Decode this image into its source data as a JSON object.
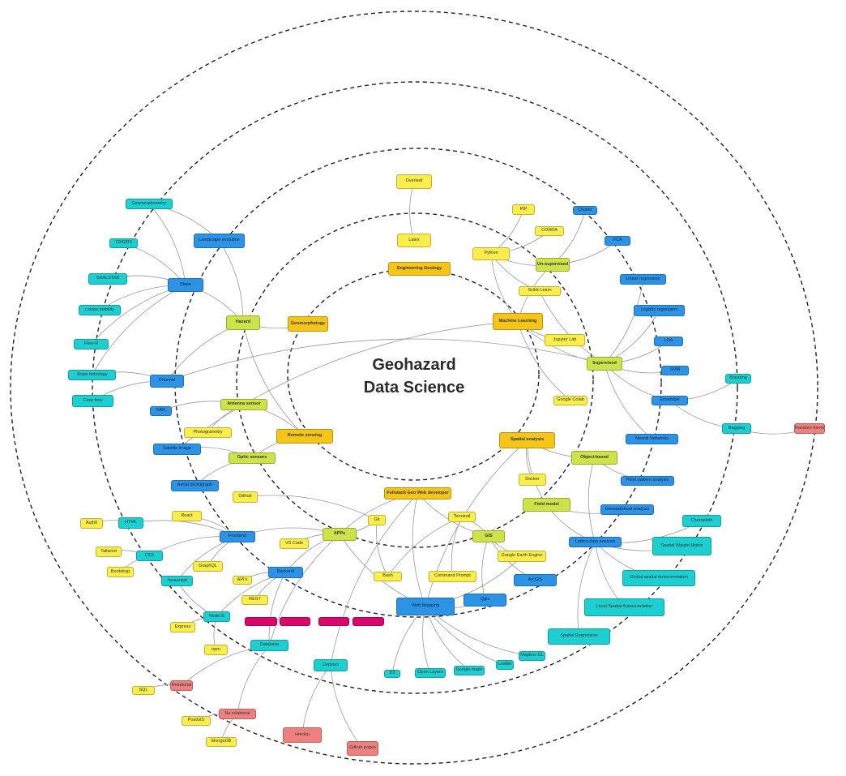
{
  "diagram": {
    "title_line1": "Geohazard",
    "title_line2": "Data Science"
  },
  "colors": {
    "core": "#f5c518",
    "yellow": "#fbee4b",
    "lime": "#cde448",
    "blue": "#2d93e6",
    "cyan": "#1ccfd0",
    "red": "#ef8080",
    "magenta": "#d9066b",
    "ring": "#222222",
    "edge": "#9a9a9a"
  },
  "nodes": [
    {
      "id": "overleaf",
      "label": "Overleaf",
      "type": "yellow",
      "interactable": true
    },
    {
      "id": "latex",
      "label": "Latex",
      "type": "yellow",
      "interactable": true
    },
    {
      "id": "eng_geo",
      "label": "Engineering Geology",
      "type": "core",
      "interactable": true
    },
    {
      "id": "pip",
      "label": "PIP",
      "type": "yellow",
      "interactable": true
    },
    {
      "id": "conda",
      "label": "CONDA",
      "type": "yellow",
      "interactable": true
    },
    {
      "id": "python",
      "label": "Python",
      "type": "yellow",
      "interactable": true
    },
    {
      "id": "cluster",
      "label": "Cluster",
      "type": "blue",
      "interactable": true
    },
    {
      "id": "pca",
      "label": "PCA",
      "type": "blue",
      "interactable": true
    },
    {
      "id": "unsup",
      "label": "Un-supervised",
      "type": "lime",
      "interactable": true
    },
    {
      "id": "sklearn",
      "label": "Scikit-Learn",
      "type": "yellow",
      "interactable": true
    },
    {
      "id": "linreg",
      "label": "Linear regression",
      "type": "blue",
      "interactable": true
    },
    {
      "id": "ml",
      "label": "Machine Learning",
      "type": "core",
      "interactable": true
    },
    {
      "id": "logreg",
      "label": "Logistic regression",
      "type": "blue",
      "interactable": true
    },
    {
      "id": "jupyter",
      "label": "Jupyter Lab",
      "type": "yellow",
      "interactable": true
    },
    {
      "id": "lda",
      "label": "LDA",
      "type": "blue",
      "interactable": true
    },
    {
      "id": "supervised",
      "label": "Supervised",
      "type": "lime",
      "interactable": true
    },
    {
      "id": "svm",
      "label": "SVM",
      "type": "blue",
      "interactable": true
    },
    {
      "id": "boosting",
      "label": "Boosting",
      "type": "cyan",
      "interactable": true
    },
    {
      "id": "colab",
      "label": "Google Colab",
      "type": "yellow",
      "interactable": true
    },
    {
      "id": "ensemble",
      "label": "Ensemble",
      "type": "blue",
      "interactable": true
    },
    {
      "id": "bagging",
      "label": "Bagging",
      "type": "cyan",
      "interactable": true
    },
    {
      "id": "rf",
      "label": "Random forest",
      "type": "red",
      "interactable": true
    },
    {
      "id": "nn",
      "label": "Neural Networks",
      "type": "blue",
      "interactable": true
    },
    {
      "id": "spatial",
      "label": "Spatial analysis",
      "type": "core",
      "interactable": true
    },
    {
      "id": "objbased",
      "label": "Object-based",
      "type": "lime",
      "interactable": true
    },
    {
      "id": "docker",
      "label": "Docker",
      "type": "yellow",
      "interactable": true
    },
    {
      "id": "ppa",
      "label": "Point pattern analysis",
      "type": "blue",
      "interactable": true
    },
    {
      "id": "fieldmodel",
      "label": "Field model",
      "type": "lime",
      "interactable": true
    },
    {
      "id": "geostat",
      "label": "Geostatistical analysis",
      "type": "blue",
      "interactable": true
    },
    {
      "id": "choropleth",
      "label": "Choropleth",
      "type": "cyan",
      "interactable": true
    },
    {
      "id": "lattice",
      "label": "Lattice data analysis",
      "type": "blue",
      "interactable": true
    },
    {
      "id": "swm",
      "label": "Spatial Weight Matrix",
      "type": "cyan",
      "interactable": true
    },
    {
      "id": "gsa",
      "label": "Global spatial Autocorrelation",
      "type": "cyan",
      "interactable": true
    },
    {
      "id": "lsa",
      "label": "Local Spatial Autocorrelation",
      "type": "cyan",
      "interactable": true
    },
    {
      "id": "spreg",
      "label": "Spatial Regression",
      "type": "cyan",
      "interactable": true
    },
    {
      "id": "mapboxgl",
      "label": "Mapbox GL",
      "type": "cyan",
      "interactable": true
    },
    {
      "id": "leaflet",
      "label": "Leaflet",
      "type": "cyan",
      "interactable": true
    },
    {
      "id": "gmaps",
      "label": "Google maps",
      "type": "cyan",
      "interactable": true
    },
    {
      "id": "openlayers",
      "label": "Open Layers",
      "type": "cyan",
      "interactable": true
    },
    {
      "id": "d3",
      "label": "D3",
      "type": "cyan",
      "interactable": true
    },
    {
      "id": "webmapping",
      "label": "Web Mapping",
      "type": "blue",
      "interactable": true
    },
    {
      "id": "qgis",
      "label": "Qgis",
      "type": "blue",
      "interactable": true
    },
    {
      "id": "arcgis",
      "label": "ArcGIS",
      "type": "blue",
      "interactable": true
    },
    {
      "id": "gee",
      "label": "Google Earth Engine",
      "type": "yellow",
      "interactable": true
    },
    {
      "id": "cmdprompt",
      "label": "Command Prompt",
      "type": "yellow",
      "interactable": true
    },
    {
      "id": "terminal",
      "label": "Terminal",
      "type": "yellow",
      "interactable": true
    },
    {
      "id": "gis",
      "label": "GIS",
      "type": "lime",
      "interactable": true
    },
    {
      "id": "bash",
      "label": "Bash",
      "type": "yellow",
      "interactable": true
    },
    {
      "id": "fullstack",
      "label": "Fullstack Geo Web developer",
      "type": "core",
      "interactable": true
    },
    {
      "id": "git",
      "label": "Git",
      "type": "yellow",
      "interactable": true
    },
    {
      "id": "github",
      "label": "Github",
      "type": "yellow",
      "interactable": true
    },
    {
      "id": "apps",
      "label": "APPs",
      "type": "lime",
      "interactable": true
    },
    {
      "id": "vscode",
      "label": "VS Code",
      "type": "yellow",
      "interactable": true
    },
    {
      "id": "frontend",
      "label": "Frontend",
      "type": "blue",
      "interactable": true
    },
    {
      "id": "backend",
      "label": "Backend",
      "type": "blue",
      "interactable": true
    },
    {
      "id": "deploys",
      "label": "Deploys",
      "type": "cyan",
      "interactable": true
    },
    {
      "id": "heroku",
      "label": "Heroku",
      "type": "red",
      "interactable": true
    },
    {
      "id": "ghpages",
      "label": "Github pages",
      "type": "red",
      "interactable": true
    },
    {
      "id": "database",
      "label": "Database",
      "type": "cyan",
      "interactable": true
    },
    {
      "id": "norel",
      "label": "No relational",
      "type": "red",
      "interactable": true
    },
    {
      "id": "relational",
      "label": "Relational",
      "type": "red",
      "interactable": true
    },
    {
      "id": "postgis",
      "label": "PostGIS",
      "type": "yellow",
      "interactable": true
    },
    {
      "id": "mongodb",
      "label": "MongoDB",
      "type": "yellow",
      "interactable": true
    },
    {
      "id": "sql",
      "label": "SQL",
      "type": "yellow",
      "interactable": true
    },
    {
      "id": "npm",
      "label": "npm",
      "type": "yellow",
      "interactable": true
    },
    {
      "id": "nodejs",
      "label": "NodeJS",
      "type": "cyan",
      "interactable": true
    },
    {
      "id": "express",
      "label": "Express",
      "type": "yellow",
      "interactable": true
    },
    {
      "id": "rest",
      "label": "REST",
      "type": "yellow",
      "interactable": true
    },
    {
      "id": "apis",
      "label": "API's",
      "type": "yellow",
      "interactable": true
    },
    {
      "id": "graphql",
      "label": "GraphQL",
      "type": "yellow",
      "interactable": true
    },
    {
      "id": "javascript",
      "label": "Javascript",
      "type": "cyan",
      "interactable": true
    },
    {
      "id": "css",
      "label": "CSS",
      "type": "cyan",
      "interactable": true
    },
    {
      "id": "tailwind",
      "label": "Tailwind",
      "type": "yellow",
      "interactable": true
    },
    {
      "id": "bootstrap",
      "label": "Bootstrap",
      "type": "yellow",
      "interactable": true
    },
    {
      "id": "html",
      "label": "HTML",
      "type": "cyan",
      "interactable": true
    },
    {
      "id": "auth0",
      "label": "Auth0",
      "type": "yellow",
      "interactable": true
    },
    {
      "id": "react",
      "label": "React",
      "type": "yellow",
      "interactable": true
    },
    {
      "id": "aerial",
      "label": "Aerial photograph",
      "type": "blue",
      "interactable": true
    },
    {
      "id": "satimg",
      "label": "Satelite image",
      "type": "blue",
      "interactable": true
    },
    {
      "id": "photogrammetry",
      "label": "Photogrametry",
      "type": "yellow",
      "interactable": true
    },
    {
      "id": "optic",
      "label": "Optic sensors",
      "type": "lime",
      "interactable": true
    },
    {
      "id": "sar",
      "label": "SAR",
      "type": "blue",
      "interactable": true
    },
    {
      "id": "antenna",
      "label": "Antenna sensor",
      "type": "lime",
      "interactable": true
    },
    {
      "id": "rs",
      "label": "Remote sensing",
      "type": "core",
      "interactable": true
    },
    {
      "id": "fflow",
      "label": "F.low flow",
      "type": "cyan",
      "interactable": true
    },
    {
      "id": "channel",
      "label": "Channel",
      "type": "blue",
      "interactable": true
    },
    {
      "id": "slopehydro",
      "label": "Slope hidrology",
      "type": "cyan",
      "interactable": true
    },
    {
      "id": "flowr",
      "label": "Flow-R",
      "type": "cyan",
      "interactable": true
    },
    {
      "id": "rslope",
      "label": "r.slope.stability",
      "type": "cyan",
      "interactable": true
    },
    {
      "id": "shalstab",
      "label": "SHALSTAB",
      "type": "cyan",
      "interactable": true
    },
    {
      "id": "slope",
      "label": "Slope",
      "type": "blue",
      "interactable": true
    },
    {
      "id": "trigrs",
      "label": "TRIGRS",
      "type": "cyan",
      "interactable": true
    },
    {
      "id": "geomorphometry",
      "label": "Geomorphometry",
      "type": "cyan",
      "interactable": true
    },
    {
      "id": "landscape",
      "label": "Landscape evolution",
      "type": "blue",
      "interactable": true
    },
    {
      "id": "hazard",
      "label": "Hazard",
      "type": "lime",
      "interactable": true
    },
    {
      "id": "geomorph",
      "label": "Geomorphology",
      "type": "core",
      "interactable": true
    },
    {
      "id": "m1",
      "label": "",
      "type": "magenta",
      "interactable": true
    },
    {
      "id": "m2",
      "label": "",
      "type": "magenta",
      "interactable": true
    },
    {
      "id": "m3",
      "label": "",
      "type": "magenta",
      "interactable": true
    },
    {
      "id": "m4",
      "label": "",
      "type": "magenta",
      "interactable": true
    }
  ],
  "edges": [
    [
      "overleaf",
      "latex"
    ],
    [
      "python",
      "pip"
    ],
    [
      "python",
      "conda"
    ],
    [
      "python",
      "unsup"
    ],
    [
      "python",
      "sklearn"
    ],
    [
      "python",
      "ml"
    ],
    [
      "unsup",
      "cluster"
    ],
    [
      "unsup",
      "pca"
    ],
    [
      "unsup",
      "ml"
    ],
    [
      "ml",
      "jupyter"
    ],
    [
      "ml",
      "colab"
    ],
    [
      "ml",
      "supervised"
    ],
    [
      "ml",
      "satimg"
    ],
    [
      "supervised",
      "linreg"
    ],
    [
      "supervised",
      "logreg"
    ],
    [
      "supervised",
      "lda"
    ],
    [
      "supervised",
      "svm"
    ],
    [
      "supervised",
      "ensemble"
    ],
    [
      "supervised",
      "nn"
    ],
    [
      "supervised",
      "channel"
    ],
    [
      "ensemble",
      "boosting"
    ],
    [
      "ensemble",
      "bagging"
    ],
    [
      "bagging",
      "rf"
    ],
    [
      "sklearn",
      "supervised"
    ],
    [
      "spatial",
      "objbased"
    ],
    [
      "spatial",
      "docker"
    ],
    [
      "spatial",
      "fieldmodel"
    ],
    [
      "spatial",
      "webmapping"
    ],
    [
      "objbased",
      "ppa"
    ],
    [
      "objbased",
      "lattice"
    ],
    [
      "fieldmodel",
      "geostat"
    ],
    [
      "fieldmodel",
      "lattice"
    ],
    [
      "lattice",
      "choropleth"
    ],
    [
      "lattice",
      "swm"
    ],
    [
      "lattice",
      "gsa"
    ],
    [
      "lattice",
      "lsa"
    ],
    [
      "lattice",
      "spreg"
    ],
    [
      "fullstack",
      "apps"
    ],
    [
      "fullstack",
      "webmapping"
    ],
    [
      "fullstack",
      "gis"
    ],
    [
      "fullstack",
      "deploys"
    ],
    [
      "apps",
      "frontend"
    ],
    [
      "apps",
      "backend"
    ],
    [
      "apps",
      "vscode"
    ],
    [
      "apps",
      "git"
    ],
    [
      "apps",
      "webmapping"
    ],
    [
      "apps",
      "database"
    ],
    [
      "git",
      "github"
    ],
    [
      "git",
      "bash"
    ],
    [
      "gis",
      "qgis"
    ],
    [
      "gis",
      "arcgis"
    ],
    [
      "gis",
      "gee"
    ],
    [
      "gis",
      "terminal"
    ],
    [
      "terminal",
      "cmdprompt"
    ],
    [
      "terminal",
      "bash"
    ],
    [
      "webmapping",
      "d3"
    ],
    [
      "webmapping",
      "openlayers"
    ],
    [
      "webmapping",
      "gmaps"
    ],
    [
      "webmapping",
      "leaflet"
    ],
    [
      "webmapping",
      "mapboxgl"
    ],
    [
      "webmapping",
      "qgis"
    ],
    [
      "webmapping",
      "gee"
    ],
    [
      "frontend",
      "html"
    ],
    [
      "frontend",
      "css"
    ],
    [
      "frontend",
      "javascript"
    ],
    [
      "frontend",
      "react"
    ],
    [
      "frontend",
      "graphql"
    ],
    [
      "html",
      "auth0"
    ],
    [
      "css",
      "tailwind"
    ],
    [
      "css",
      "bootstrap"
    ],
    [
      "backend",
      "nodejs"
    ],
    [
      "backend",
      "apis"
    ],
    [
      "backend",
      "rest"
    ],
    [
      "backend",
      "database"
    ],
    [
      "nodejs",
      "express"
    ],
    [
      "nodejs",
      "npm"
    ],
    [
      "javascript",
      "nodejs"
    ],
    [
      "database",
      "relational"
    ],
    [
      "database",
      "norel"
    ],
    [
      "relational",
      "sql"
    ],
    [
      "norel",
      "postgis"
    ],
    [
      "norel",
      "mongodb"
    ],
    [
      "deploys",
      "heroku"
    ],
    [
      "deploys",
      "ghpages"
    ],
    [
      "rs",
      "antenna"
    ],
    [
      "rs",
      "optic"
    ],
    [
      "antenna",
      "sar"
    ],
    [
      "antenna",
      "photogrammetry"
    ],
    [
      "optic",
      "satimg"
    ],
    [
      "optic",
      "aerial"
    ],
    [
      "hazard",
      "geomorph"
    ],
    [
      "hazard",
      "slope"
    ],
    [
      "hazard",
      "channel"
    ],
    [
      "hazard",
      "landscape"
    ],
    [
      "hazard",
      "rs"
    ],
    [
      "slope",
      "geomorphometry"
    ],
    [
      "slope",
      "trigrs"
    ],
    [
      "slope",
      "shalstab"
    ],
    [
      "slope",
      "rslope"
    ],
    [
      "slope",
      "flowr"
    ],
    [
      "slope",
      "slopehydro"
    ],
    [
      "channel",
      "fflow"
    ],
    [
      "channel",
      "slopehydro"
    ],
    [
      "landscape",
      "geomorphometry"
    ]
  ]
}
